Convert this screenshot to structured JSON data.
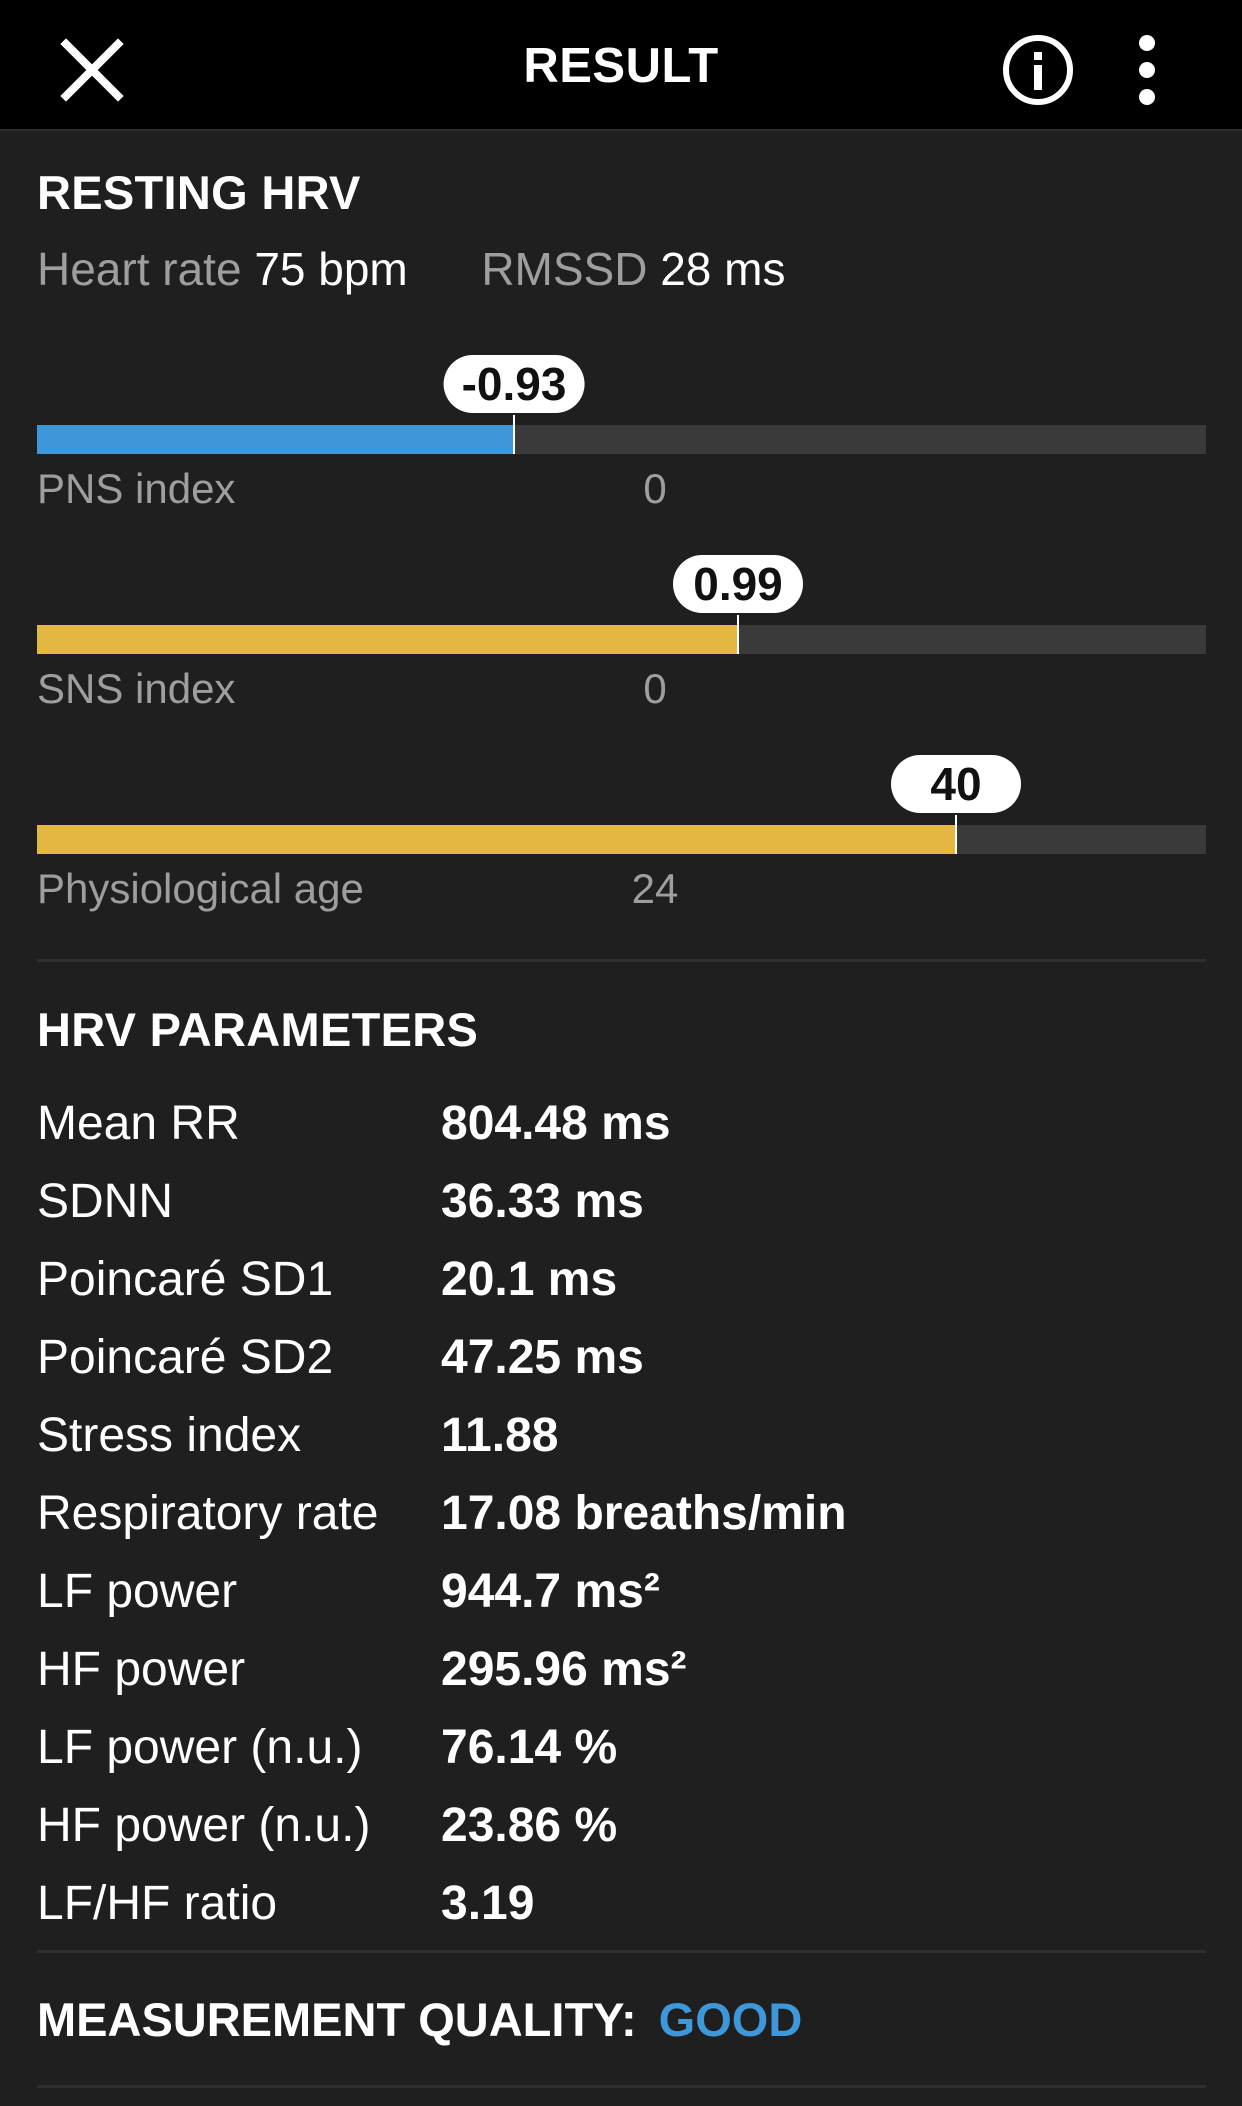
{
  "topbar": {
    "title": "RESULT",
    "icons": [
      "close-icon",
      "info-icon",
      "more-vert-icon"
    ]
  },
  "resting": {
    "title": "RESTING HRV",
    "heart_rate_label": "Heart rate",
    "heart_rate_value": "75 bpm",
    "rmssd_label": "RMSSD",
    "rmssd_value": "28 ms"
  },
  "gauges": [
    {
      "label": "PNS index",
      "value": "-0.93",
      "center_label": "0",
      "fill_fraction": 0.408,
      "color": "#3d97d8"
    },
    {
      "label": "SNS index",
      "value": "0.99",
      "center_label": "0",
      "fill_fraction": 0.6,
      "color": "#e2b843"
    },
    {
      "label": "Physiological age",
      "value": "40",
      "center_label": "24",
      "fill_fraction": 0.786,
      "color": "#e2b843"
    }
  ],
  "parameters": {
    "title": "HRV PARAMETERS",
    "rows": [
      {
        "name": "Mean RR",
        "value": "804.48 ms"
      },
      {
        "name": "SDNN",
        "value": "36.33 ms"
      },
      {
        "name": "Poincaré SD1",
        "value": "20.1 ms"
      },
      {
        "name": "Poincaré SD2",
        "value": "47.25 ms"
      },
      {
        "name": "Stress index",
        "value": "11.88"
      },
      {
        "name": "Respiratory rate",
        "value": "17.08 breaths/min"
      },
      {
        "name": "LF power",
        "value": "944.7 ms²"
      },
      {
        "name": "HF power",
        "value": "295.96 ms²"
      },
      {
        "name": "LF power (n.u.)",
        "value": "76.14 %"
      },
      {
        "name": "HF power (n.u.)",
        "value": "23.86 %"
      },
      {
        "name": "LF/HF ratio",
        "value": "3.19"
      }
    ]
  },
  "quality": {
    "label": "MEASUREMENT QUALITY:",
    "value": "GOOD",
    "value_color": "#3d97d8"
  }
}
